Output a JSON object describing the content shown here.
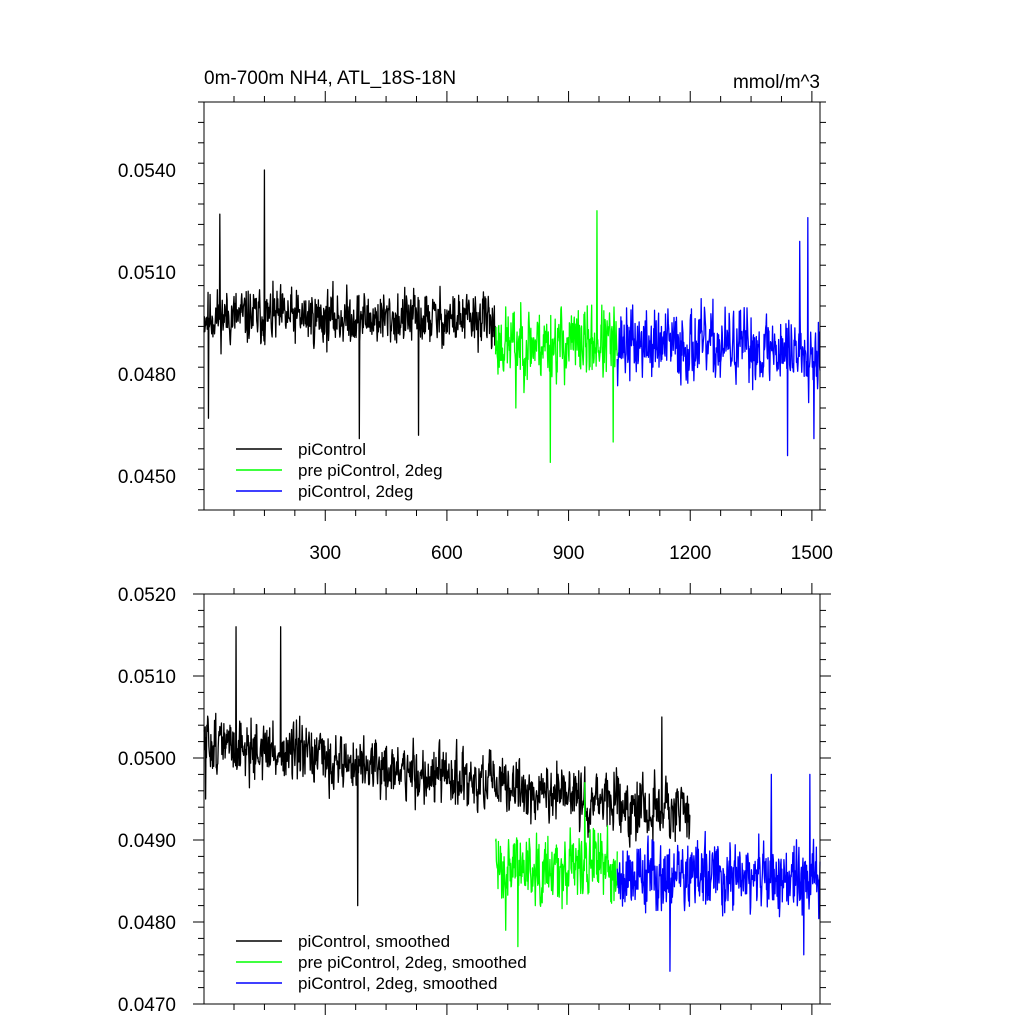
{
  "chart_data": [
    {
      "type": "line",
      "title": "0m-700m NH4, ATL_18S-18N",
      "units": "mmol/m^3",
      "xlim": [
        1,
        1520
      ],
      "ylim": [
        0.044,
        0.056
      ],
      "xticks": [
        300,
        600,
        900,
        1200,
        1500
      ],
      "xtick_labels": [
        "300",
        "600",
        "900",
        "1200",
        "1500"
      ],
      "yticks": [
        0.045,
        0.048,
        0.051,
        0.054
      ],
      "ytick_labels": [
        "0.0450",
        "0.0480",
        "0.0510",
        "0.0540"
      ],
      "legend_position": "bottom-left",
      "series": [
        {
          "name": "piControl",
          "color": "#000000",
          "x_start": 1,
          "x_end": 720,
          "mean": 0.0497,
          "trend_end": 0.0496,
          "noise": 0.00072,
          "spikes": [
            [
              150,
              0.054
            ],
            [
              384,
              0.0461
            ],
            [
              530,
              0.0462
            ],
            [
              40,
              0.0527
            ],
            [
              12,
              0.0467
            ]
          ],
          "seed": 11
        },
        {
          "name": "pre piControl, 2deg",
          "color": "#00ff00",
          "x_start": 720,
          "x_end": 1020,
          "mean": 0.0489,
          "trend_end": 0.0489,
          "noise": 0.00095,
          "spikes": [
            [
              970,
              0.0528
            ],
            [
              855,
              0.0454
            ],
            [
              1010,
              0.046
            ],
            [
              770,
              0.047
            ]
          ],
          "seed": 23
        },
        {
          "name": "piControl, 2deg",
          "color": "#0000ff",
          "x_start": 1020,
          "x_end": 1520,
          "mean": 0.0489,
          "trend_end": 0.0487,
          "noise": 0.00095,
          "spikes": [
            [
              1490,
              0.0526
            ],
            [
              1440,
              0.0456
            ],
            [
              1505,
              0.0461
            ],
            [
              1470,
              0.0519
            ]
          ],
          "seed": 37
        }
      ]
    },
    {
      "type": "line",
      "title": "",
      "units": "",
      "xlim": [
        1,
        1520
      ],
      "ylim": [
        0.047,
        0.052
      ],
      "xticks": [
        300,
        600,
        900,
        1200,
        1500
      ],
      "xtick_labels": [],
      "yticks": [
        0.047,
        0.048,
        0.049,
        0.05,
        0.051,
        0.052
      ],
      "ytick_labels": [
        "0.0470",
        "0.0480",
        "0.0490",
        "0.0500",
        "0.0510",
        "0.0520"
      ],
      "legend_position": "bottom-left",
      "series": [
        {
          "name": "piControl, smoothed",
          "color": "#000000",
          "x_start": 1,
          "x_end": 1200,
          "mean": 0.0502,
          "trend_end": 0.0493,
          "noise": 0.00032,
          "spikes": [
            [
              80,
              0.0516
            ],
            [
              190,
              0.0516
            ],
            [
              380,
              0.0482
            ],
            [
              1130,
              0.0505
            ],
            [
              5,
              0.0495
            ]
          ],
          "seed": 51
        },
        {
          "name": "pre piControl, 2deg, smoothed",
          "color": "#00ff00",
          "x_start": 720,
          "x_end": 1020,
          "mean": 0.0487,
          "trend_end": 0.0487,
          "noise": 0.00038,
          "spikes": [
            [
              775,
              0.0477
            ],
            [
              745,
              0.0479
            ],
            [
              940,
              0.0497
            ]
          ],
          "seed": 63
        },
        {
          "name": "piControl, 2deg, smoothed",
          "color": "#0000ff",
          "x_start": 1020,
          "x_end": 1520,
          "mean": 0.0486,
          "trend_end": 0.0485,
          "noise": 0.0004,
          "spikes": [
            [
              1150,
              0.0474
            ],
            [
              1480,
              0.0476
            ],
            [
              1495,
              0.0498
            ],
            [
              1400,
              0.0498
            ]
          ],
          "seed": 79
        }
      ]
    }
  ]
}
